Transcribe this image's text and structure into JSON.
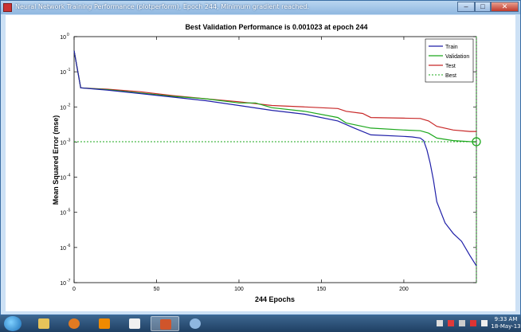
{
  "window": {
    "title": "Neural Network Training Performance (plotperform), Epoch 244, Minimum gradient reached."
  },
  "controls": {
    "minimize": "–",
    "maximize": "□",
    "close": "✕"
  },
  "chart_data": {
    "type": "line",
    "title": "Best Validation Performance is 0.001023 at epoch 244",
    "xlabel": "244 Epochs",
    "ylabel": "Mean Squared Error  (mse)",
    "log_y": true,
    "xlim": [
      0,
      244
    ],
    "ylim": [
      1e-07,
      1
    ],
    "xticks": [
      0,
      50,
      100,
      150,
      200
    ],
    "yticks": [
      {
        "label": "10",
        "exp": "0"
      },
      {
        "label": "10",
        "exp": "-1"
      },
      {
        "label": "10",
        "exp": "-2"
      },
      {
        "label": "10",
        "exp": "-3"
      },
      {
        "label": "10",
        "exp": "-4"
      },
      {
        "label": "10",
        "exp": "-5"
      },
      {
        "label": "10",
        "exp": "-6"
      },
      {
        "label": "10",
        "exp": "-7"
      }
    ],
    "legend_position": "top-right",
    "series": [
      {
        "name": "Train",
        "color": "#1f1fa8",
        "x": [
          0,
          4,
          20,
          40,
          60,
          80,
          100,
          120,
          140,
          160,
          170,
          180,
          200,
          205,
          210,
          212,
          214,
          216,
          218,
          220,
          225,
          230,
          235,
          240,
          244
        ],
        "y": [
          0.4,
          0.035,
          0.03,
          0.024,
          0.019,
          0.015,
          0.011,
          0.008,
          0.0062,
          0.004,
          0.0025,
          0.0016,
          0.00145,
          0.0014,
          0.0013,
          0.0011,
          0.0006,
          0.00025,
          8e-05,
          2e-05,
          5e-06,
          2.5e-06,
          1.5e-06,
          6e-07,
          3e-07
        ]
      },
      {
        "name": "Validation",
        "color": "#1ca81c",
        "x": [
          0,
          4,
          20,
          40,
          60,
          80,
          100,
          110,
          120,
          140,
          160,
          165,
          180,
          200,
          210,
          215,
          220,
          230,
          240,
          244
        ],
        "y": [
          0.4,
          0.035,
          0.031,
          0.025,
          0.02,
          0.017,
          0.013,
          0.013,
          0.0095,
          0.0075,
          0.005,
          0.0035,
          0.0025,
          0.0022,
          0.0021,
          0.0018,
          0.0013,
          0.0011,
          0.00103,
          0.001023
        ]
      },
      {
        "name": "Test",
        "color": "#c82828",
        "x": [
          0,
          4,
          20,
          40,
          60,
          80,
          100,
          120,
          140,
          150,
          160,
          165,
          175,
          180,
          200,
          210,
          215,
          220,
          230,
          240,
          244
        ],
        "y": [
          0.4,
          0.035,
          0.032,
          0.027,
          0.021,
          0.017,
          0.014,
          0.011,
          0.01,
          0.0095,
          0.009,
          0.0075,
          0.0065,
          0.005,
          0.0048,
          0.0047,
          0.004,
          0.0028,
          0.0022,
          0.002,
          0.002
        ]
      }
    ],
    "best": {
      "name": "Best",
      "value": 0.001023,
      "epoch": 244,
      "color": "#1ca81c"
    }
  },
  "taskbar": {
    "apps": [
      "Explorer",
      "Firefox",
      "VLC",
      "Media Player",
      "MATLAB",
      "Paint"
    ],
    "clock_time": "9:33 AM",
    "clock_date": "18-May-13"
  }
}
